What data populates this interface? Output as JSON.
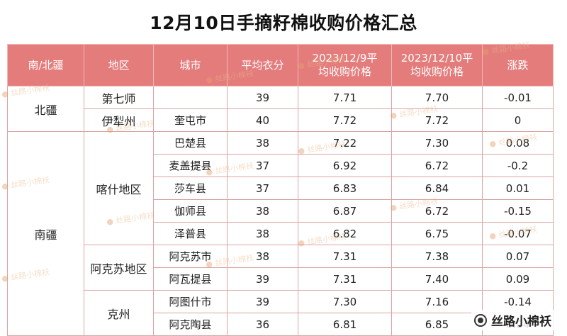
{
  "title": "12月10日手摘籽棉收购价格汇总",
  "columns": [
    "南/北疆",
    "地区",
    "城市",
    "平均衣分",
    "2023/12/9平均收购价格",
    "2023/12/10平均收购价格",
    "涨跌"
  ],
  "header_lines": [
    [
      "南/北疆"
    ],
    [
      "地区"
    ],
    [
      "城市"
    ],
    [
      "平均衣分"
    ],
    [
      "2023/12/9平",
      "均收购价格"
    ],
    [
      "2023/12/10平",
      "均收购价格"
    ],
    [
      "涨跌"
    ]
  ],
  "rows": [
    {
      "region": "北疆",
      "area": "第七师",
      "city": "",
      "lint": "39",
      "price_prev": "7.71",
      "price_cur": "7.70",
      "change": "-0.01"
    },
    {
      "region": "北疆",
      "area": "伊犁州",
      "city": "奎屯市",
      "lint": "40",
      "price_prev": "7.72",
      "price_cur": "7.72",
      "change": "0"
    },
    {
      "region": "南疆",
      "area": "喀什地区",
      "city": "巴楚县",
      "lint": "38",
      "price_prev": "7.22",
      "price_cur": "7.30",
      "change": "0.08"
    },
    {
      "region": "南疆",
      "area": "喀什地区",
      "city": "麦盖提县",
      "lint": "37",
      "price_prev": "6.92",
      "price_cur": "6.72",
      "change": "-0.2"
    },
    {
      "region": "南疆",
      "area": "喀什地区",
      "city": "莎车县",
      "lint": "37",
      "price_prev": "6.83",
      "price_cur": "6.84",
      "change": "0.01"
    },
    {
      "region": "南疆",
      "area": "喀什地区",
      "city": "伽师县",
      "lint": "38",
      "price_prev": "6.87",
      "price_cur": "6.72",
      "change": "-0.15"
    },
    {
      "region": "南疆",
      "area": "喀什地区",
      "city": "泽普县",
      "lint": "38",
      "price_prev": "6.82",
      "price_cur": "6.75",
      "change": "-0.07"
    },
    {
      "region": "南疆",
      "area": "阿克苏地区",
      "city": "阿克苏市",
      "lint": "38",
      "price_prev": "7.31",
      "price_cur": "7.38",
      "change": "0.07"
    },
    {
      "region": "南疆",
      "area": "阿克苏地区",
      "city": "阿瓦提县",
      "lint": "39",
      "price_prev": "7.31",
      "price_cur": "7.40",
      "change": "0.09"
    },
    {
      "region": "南疆",
      "area": "克州",
      "city": "阿图什市",
      "lint": "39",
      "price_prev": "7.30",
      "price_cur": "7.16",
      "change": "-0.14"
    },
    {
      "region": "南疆",
      "area": "克州",
      "city": "阿克陶县",
      "lint": "36",
      "price_prev": "6.81",
      "price_cur": "6.85",
      "change": "0.04"
    }
  ],
  "watermark_text": "丝路小棉袄",
  "brand_name": "丝路小棉袄",
  "brand_icon": "wechat-channel-icon",
  "colors": {
    "header_bg": "#e47c7c",
    "border": "#d9a4a4",
    "header_text": "#ffffff"
  }
}
